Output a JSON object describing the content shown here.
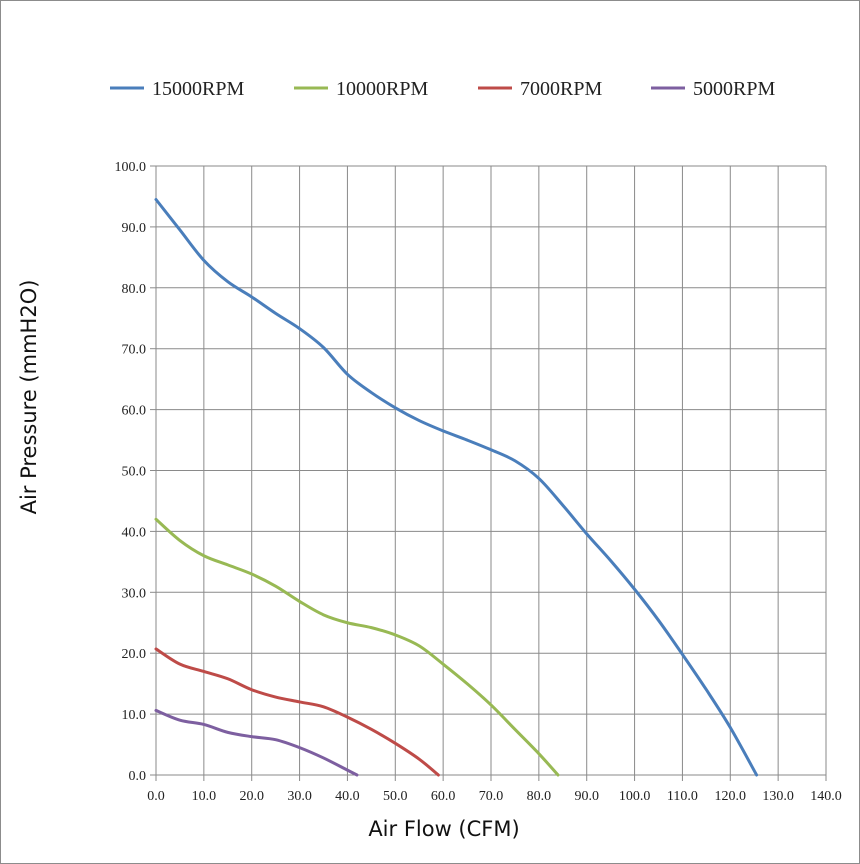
{
  "chart_data": {
    "type": "line",
    "xlabel": "Air Flow (CFM)",
    "ylabel": "Air Pressure (mmH2O)",
    "xlim": [
      0,
      140
    ],
    "ylim": [
      0,
      100
    ],
    "x_ticks": [
      "0.0",
      "10.0",
      "20.0",
      "30.0",
      "40.0",
      "50.0",
      "60.0",
      "70.0",
      "80.0",
      "90.0",
      "100.0",
      "110.0",
      "120.0",
      "130.0",
      "140.0"
    ],
    "y_ticks": [
      "0.0",
      "10.0",
      "20.0",
      "30.0",
      "40.0",
      "50.0",
      "60.0",
      "70.0",
      "80.0",
      "90.0",
      "100.0"
    ],
    "grid": true,
    "legend_position": "top",
    "series": [
      {
        "name": "15000RPM",
        "color": "#4a7ebb",
        "x": [
          0,
          5,
          10,
          15,
          20,
          25,
          30,
          35,
          40,
          45,
          50,
          55,
          60,
          65,
          70,
          75,
          80,
          85,
          90,
          95,
          100,
          105,
          110,
          115,
          120,
          125.5
        ],
        "y": [
          94.5,
          89.5,
          84.5,
          81,
          78.5,
          75.8,
          73.3,
          70.2,
          65.8,
          62.8,
          60.3,
          58.2,
          56.5,
          55,
          53.4,
          51.6,
          48.7,
          44.3,
          39.6,
          35.2,
          30.5,
          25.4,
          19.8,
          14,
          7.8,
          0
        ]
      },
      {
        "name": "10000RPM",
        "color": "#98b954",
        "x": [
          0,
          5,
          10,
          15,
          20,
          25,
          30,
          35,
          40,
          45,
          50,
          55,
          60,
          65,
          70,
          75,
          80,
          84
        ],
        "y": [
          42,
          38.5,
          36,
          34.5,
          33,
          31,
          28.5,
          26.3,
          25,
          24.2,
          23,
          21.2,
          18.2,
          15,
          11.5,
          7.5,
          3.5,
          0
        ]
      },
      {
        "name": "7000RPM",
        "color": "#be4b48",
        "x": [
          0,
          5,
          10,
          15,
          20,
          25,
          30,
          35,
          40,
          45,
          50,
          55,
          59
        ],
        "y": [
          20.7,
          18.2,
          17,
          15.8,
          14,
          12.8,
          12,
          11.2,
          9.5,
          7.5,
          5.2,
          2.6,
          0
        ]
      },
      {
        "name": "5000RPM",
        "color": "#7d5fa0",
        "x": [
          0,
          5,
          10,
          15,
          20,
          25,
          30,
          35,
          40,
          42
        ],
        "y": [
          10.6,
          9,
          8.3,
          7,
          6.3,
          5.8,
          4.5,
          2.8,
          0.8,
          0
        ]
      }
    ]
  }
}
